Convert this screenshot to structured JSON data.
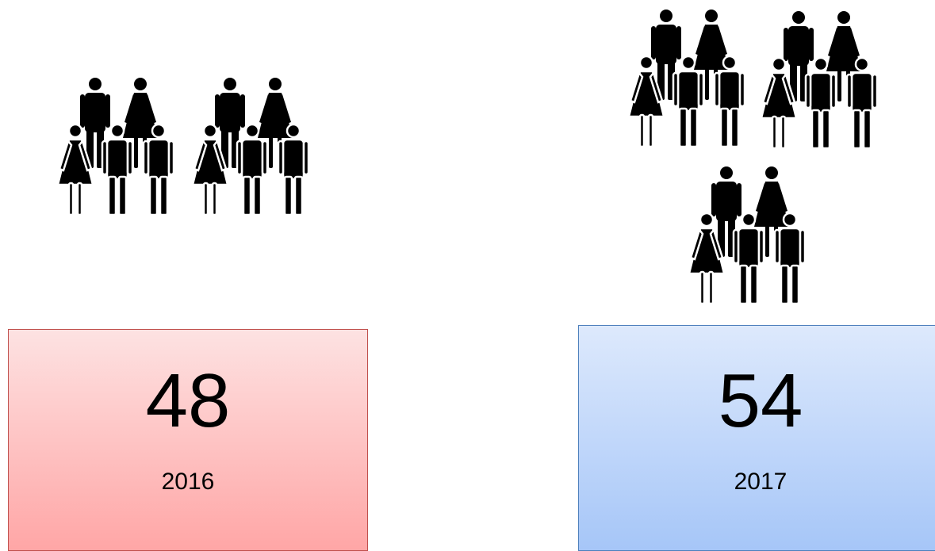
{
  "panels": [
    {
      "value": 48,
      "year": "2016"
    },
    {
      "value": 54,
      "year": "2017"
    }
  ]
}
